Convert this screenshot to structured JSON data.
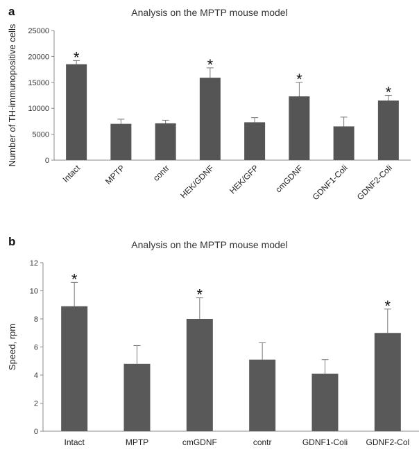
{
  "chart_data": [
    {
      "panel_label": "a",
      "type": "bar",
      "title": "Analysis on the MPTP mouse model",
      "ylabel": "Number of TH-immunopositive cells",
      "xlabel": "",
      "ylim": [
        0,
        25000
      ],
      "yticks": [
        0,
        5000,
        10000,
        15000,
        20000,
        25000
      ],
      "grid": false,
      "categories": [
        "Intact",
        "MPTP",
        "contr",
        "HEK/GDNF",
        "HEK/GFP",
        "cmGDNF",
        "GDNF1-Coli",
        "GDNF2-Coli"
      ],
      "values": [
        18500,
        7000,
        7100,
        15900,
        7300,
        12300,
        6500,
        11500
      ],
      "errors": [
        700,
        900,
        600,
        1900,
        900,
        2700,
        1800,
        1000
      ],
      "significant": [
        true,
        false,
        false,
        true,
        false,
        true,
        false,
        true
      ],
      "marker": "*",
      "bar_color": "#555555",
      "xtick_rotation": -45
    },
    {
      "panel_label": "b",
      "type": "bar",
      "title": "Analysis on the MPTP mouse model",
      "ylabel": "Speed, rpm",
      "xlabel": "",
      "ylim": [
        0,
        12
      ],
      "yticks": [
        0,
        2,
        4,
        6,
        8,
        10,
        12
      ],
      "grid": false,
      "categories": [
        "Intact",
        "MPTP",
        "cmGDNF",
        "contr",
        "GDNF1-Coli",
        "GDNF2-Col"
      ],
      "values": [
        8.9,
        4.8,
        8.0,
        5.1,
        4.1,
        7.0
      ],
      "errors": [
        1.7,
        1.3,
        1.5,
        1.2,
        1.0,
        1.7
      ],
      "significant": [
        true,
        false,
        true,
        false,
        false,
        true
      ],
      "marker": "*",
      "bar_color": "#595959",
      "xtick_rotation": 0
    }
  ]
}
